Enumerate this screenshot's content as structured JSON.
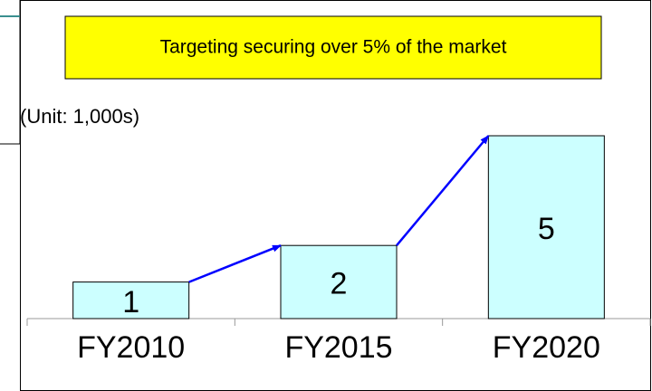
{
  "chart_data": {
    "type": "bar",
    "title": "Targeting securing over 5% of the market",
    "unit_label": "(Unit: 1,000s)",
    "categories": [
      "FY2010",
      "FY2015",
      "FY2020"
    ],
    "values": [
      1,
      2,
      5
    ],
    "color": "#ccffff",
    "title_box_color": "#ffff00",
    "arrow_color": "#0000ff"
  }
}
